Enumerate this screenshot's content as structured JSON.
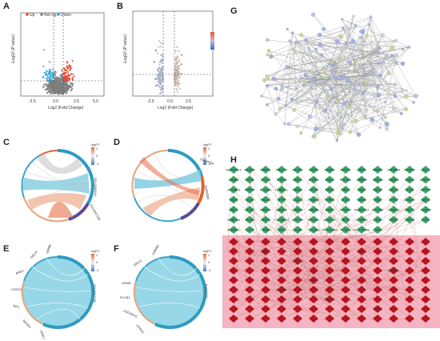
{
  "labels": {
    "a": "A",
    "b": "B",
    "c": "C",
    "d": "D",
    "e": "E",
    "f": "F",
    "g": "G",
    "h": "H"
  },
  "volcano_a": {
    "legend": [
      {
        "label": "Up",
        "color": "#e8462f"
      },
      {
        "label": "Not sig",
        "color": "#7f7f7f"
      },
      {
        "label": "Down",
        "color": "#2fa4d8"
      }
    ],
    "xlabel": "Log2 (Fold Change)",
    "ylabel": "-Log10 (P value)",
    "xticks": [
      "-2.5",
      "0.0",
      "2.5",
      "5.0"
    ]
  },
  "volcano_b": {
    "xlabel": "Log2 (Fold Change)",
    "ylabel": "-Log10 (P value)",
    "xticks": [
      "-2.5",
      "0.0",
      "2.5"
    ]
  },
  "chord_c": {
    "legend_title": "logFC",
    "legend_ticks": [
      "1",
      "0",
      "-1"
    ],
    "right_labels": [
      "GO:0045944",
      "GO:0007186"
    ]
  },
  "chord_d": {
    "legend_title": "logFC",
    "legend_ticks": [
      "1",
      "0",
      "-1"
    ],
    "right_labels": [
      "hsa04080",
      "hsa04024"
    ]
  },
  "chord_e": {
    "legend_title": "logFC",
    "legend_ticks": [
      "1",
      "0",
      "-1"
    ],
    "right_labels": [
      "GO:0007186"
    ],
    "genes": [
      "GRM8",
      "RELN",
      "ANK2",
      "HTR2C",
      "NPY",
      "NR4A3",
      "GRIK1"
    ]
  },
  "chord_f": {
    "legend_title": "logFC",
    "legend_ticks": [
      "1",
      "0",
      "-1"
    ],
    "right_labels": [
      "hsa04725"
    ],
    "genes": [
      "CHRM2",
      "GRIK1",
      "GRM8",
      "PLCB1",
      "CACNA1C",
      "HTR2C"
    ]
  },
  "network_h": {
    "green_rows": [
      [
        "SERPINE1",
        "VEGFB",
        "SMAD1",
        "PIEZO2",
        "HIF3A2",
        "TSHZ4",
        "CD58A",
        "NPY2D",
        "SPTA",
        "RPAP3",
        "SPEND4",
        "PCDH8",
        "SLC8"
      ],
      [
        "LAMB3",
        "FOSB",
        "SLC24",
        "FGF18",
        "URIC1",
        "SORL1",
        "ANK2",
        "PDLIM2",
        "GRB10",
        "CDC18",
        "SMAD1",
        "RND3",
        "MAPK7"
      ],
      [
        "SCUBE3",
        "TRPC4",
        "SLC8A2",
        "CHRDL1",
        "NRGN",
        "HIC26",
        "RPS6",
        "HAP1",
        "TNC",
        "MEGF",
        "CALN1",
        "DLG4",
        "NPY1R"
      ],
      [
        "FBLN",
        "OLIG",
        "PACS1",
        "ITPR",
        "CALCA",
        "FANCM",
        "TRPM1",
        "ACTG",
        "SARM",
        "NSD",
        "ZFP67",
        "CDC20",
        "MEF2"
      ],
      [
        "RPL3",
        "PHOX",
        "RBFOX",
        "MEGF1",
        "GRB14",
        "NAP38",
        "RAB1",
        "PTPRO",
        "PLEKHG1",
        "CACNB",
        "CHRM1",
        "ZNF71",
        "TENM3"
      ],
      [
        "GABRA4",
        "PLXN",
        "GRIP1",
        "CACNA1C",
        "MYO10",
        "PRKAG",
        "AKAP14",
        "RCN",
        "CAPN9",
        "LIPA",
        "GDNF",
        "TRPC1",
        "CPE"
      ],
      [
        "SEMA3C",
        "COL6",
        "TNR",
        "CDN",
        "MUSK",
        "COL3A1",
        "HLA-DQA1",
        "NLRP3",
        "HLA-DRB1",
        "GRIK",
        "",
        "",
        ""
      ]
    ],
    "red_labels": [
      "RELN",
      "HTR2C",
      "GRIK1",
      "CHRM2",
      "PLCB1",
      "NR4A3",
      "GRM8",
      "NPY"
    ]
  },
  "chart_data": [
    {
      "type": "scatter",
      "name_ref": "A",
      "xlabel": "Log2 (Fold Change)",
      "ylabel": "-Log10 (P value)",
      "groups": [
        "Up",
        "Not sig",
        "Down"
      ]
    },
    {
      "type": "scatter",
      "name_ref": "B",
      "xlabel": "Log2 (Fold Change)",
      "ylabel": "-Log10 (P value)"
    }
  ]
}
